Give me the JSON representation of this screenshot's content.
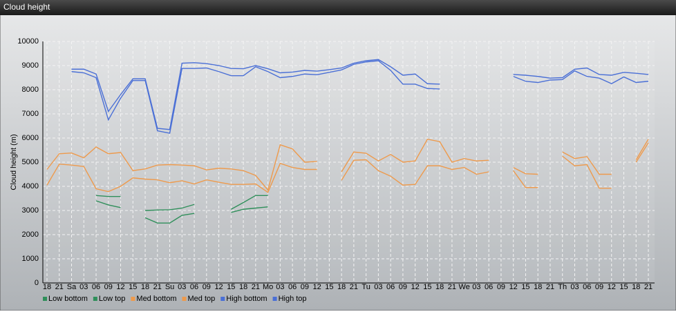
{
  "chart_data": {
    "type": "line",
    "title": "Cloud height",
    "y_label": "Cloud height (m)",
    "categories": [
      "18",
      "21",
      "Sa",
      "03",
      "06",
      "09",
      "12",
      "15",
      "18",
      "21",
      "Su",
      "03",
      "06",
      "09",
      "12",
      "15",
      "18",
      "21",
      "Mo",
      "03",
      "06",
      "09",
      "12",
      "15",
      "18",
      "21",
      "Tu",
      "03",
      "06",
      "09",
      "12",
      "15",
      "18",
      "21",
      "We",
      "03",
      "06",
      "09",
      "12",
      "15",
      "18",
      "21",
      "Th",
      "03",
      "06",
      "09",
      "12",
      "15",
      "18",
      "21"
    ],
    "ylim": [
      0,
      10000
    ],
    "yticks": [
      0,
      1000,
      2000,
      3000,
      4000,
      5000,
      6000,
      7000,
      8000,
      9000,
      10000
    ],
    "grid": true,
    "series": [
      {
        "name": "Low bottom",
        "color": "#2f8f5a",
        "values": [
          null,
          null,
          null,
          null,
          3400,
          3230,
          3120,
          null,
          2700,
          2480,
          2480,
          2800,
          2880,
          null,
          null,
          2920,
          3050,
          3100,
          3150,
          null,
          null,
          null,
          null,
          null,
          null,
          null,
          null,
          null,
          null,
          null,
          null,
          null,
          null,
          null,
          null,
          null,
          null,
          null,
          null,
          null,
          null,
          null,
          null,
          null,
          null,
          null,
          null,
          null,
          null,
          null
        ]
      },
      {
        "name": "Low top",
        "color": "#2f8f5a",
        "values": [
          null,
          null,
          null,
          null,
          3620,
          3580,
          3580,
          null,
          3000,
          3020,
          3030,
          3100,
          3250,
          null,
          null,
          3050,
          3330,
          3620,
          3620,
          null,
          null,
          null,
          null,
          null,
          null,
          null,
          null,
          null,
          null,
          null,
          null,
          null,
          null,
          null,
          null,
          null,
          null,
          null,
          null,
          null,
          null,
          null,
          null,
          null,
          null,
          null,
          null,
          null,
          null,
          null
        ]
      },
      {
        "name": "Med bottom",
        "color": "#ee9a4c",
        "values": [
          4050,
          4920,
          4880,
          4820,
          3900,
          3780,
          4000,
          4350,
          4300,
          4270,
          4150,
          4230,
          4100,
          4270,
          4170,
          4080,
          4080,
          4100,
          3750,
          4950,
          4780,
          4700,
          4700,
          null,
          4250,
          5080,
          5100,
          4650,
          4420,
          4050,
          4080,
          4850,
          4850,
          4700,
          4780,
          4500,
          4600,
          null,
          4650,
          3950,
          3950,
          null,
          5250,
          4850,
          4900,
          3920,
          3920,
          null,
          5000,
          5800
        ]
      },
      {
        "name": "Med top",
        "color": "#ee9a4c",
        "values": [
          4700,
          5350,
          5380,
          5180,
          5630,
          5350,
          5400,
          4650,
          4720,
          4880,
          4900,
          4880,
          4850,
          4680,
          4750,
          4720,
          4650,
          4450,
          3850,
          5720,
          5550,
          5000,
          5030,
          null,
          4600,
          5420,
          5370,
          5050,
          5320,
          5000,
          5050,
          5950,
          5850,
          5000,
          5150,
          5050,
          5080,
          null,
          4780,
          4520,
          4500,
          null,
          5420,
          5150,
          5230,
          4500,
          4500,
          null,
          5100,
          5950
        ]
      },
      {
        "name": "High bottom",
        "color": "#4a6fd6",
        "values": [
          null,
          null,
          8750,
          8700,
          8500,
          6750,
          7650,
          8380,
          8380,
          6300,
          6200,
          8880,
          8880,
          8900,
          8750,
          8580,
          8580,
          8950,
          8750,
          8500,
          8550,
          8650,
          8620,
          8720,
          8820,
          9050,
          9150,
          9200,
          8800,
          8230,
          8230,
          8050,
          8030,
          null,
          null,
          null,
          null,
          null,
          8550,
          8350,
          8300,
          8400,
          8420,
          8780,
          8550,
          8480,
          8250,
          8530,
          8300,
          8350
        ]
      },
      {
        "name": "High top",
        "color": "#4a6fd6",
        "values": [
          null,
          null,
          8850,
          8850,
          8650,
          7100,
          7800,
          8450,
          8450,
          6400,
          6350,
          9100,
          9120,
          9080,
          9000,
          8880,
          8870,
          9000,
          8870,
          8700,
          8730,
          8800,
          8770,
          8830,
          8900,
          9100,
          9200,
          9250,
          8950,
          8600,
          8650,
          8250,
          8230,
          null,
          null,
          null,
          null,
          null,
          8630,
          8600,
          8550,
          8480,
          8500,
          8850,
          8900,
          8630,
          8600,
          8720,
          8680,
          8630
        ]
      }
    ]
  }
}
